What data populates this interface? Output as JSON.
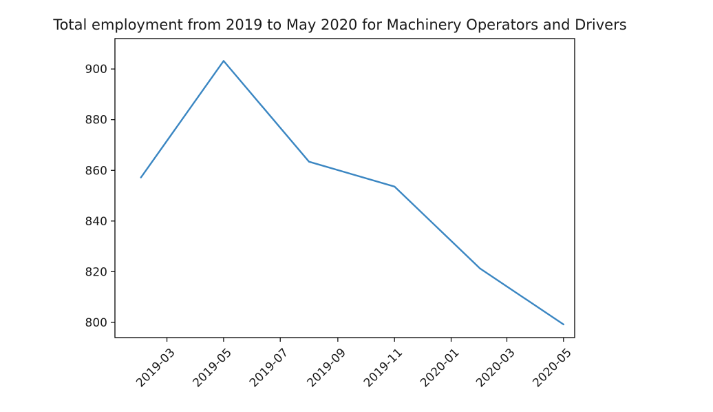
{
  "chart_data": {
    "type": "line",
    "title": "Total employment from 2019 to May 2020 for Machinery Operators and Drivers",
    "xlabel": "",
    "ylabel": "",
    "x_tick_labels": [
      "2019-03",
      "2019-05",
      "2019-07",
      "2019-09",
      "2019-11",
      "2020-01",
      "2020-03",
      "2020-05"
    ],
    "x_tick_dates": [
      "2019-03-01",
      "2019-05-01",
      "2019-07-01",
      "2019-09-01",
      "2019-11-01",
      "2020-01-01",
      "2020-03-01",
      "2020-05-01"
    ],
    "y_ticks": [
      800,
      820,
      840,
      860,
      880,
      900
    ],
    "xlim": [
      "2019-01-04",
      "2020-05-13"
    ],
    "ylim": [
      794,
      912
    ],
    "grid": false,
    "series": [
      {
        "color": "#3a86c2",
        "x": [
          "2019-02-01",
          "2019-05-01",
          "2019-08-01",
          "2019-11-01",
          "2020-02-01",
          "2020-05-01"
        ],
        "y": [
          857.2,
          903.2,
          863.4,
          853.6,
          821.3,
          799.2
        ]
      }
    ]
  }
}
